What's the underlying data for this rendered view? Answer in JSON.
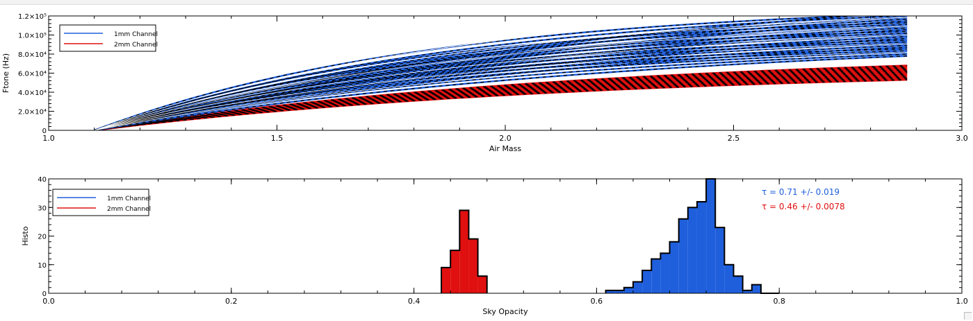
{
  "chart_data": [
    {
      "type": "line",
      "title": "",
      "xlabel": "Air Mass",
      "ylabel": "Ftone (Hz)",
      "xlim": [
        1.0,
        3.0
      ],
      "ylim": [
        0,
        120000
      ],
      "x_ticks": [
        "1.0",
        "1.5",
        "2.0",
        "2.5",
        "3.0"
      ],
      "x_tick_values": [
        1.0,
        1.5,
        2.0,
        2.5,
        3.0
      ],
      "y_ticks": [
        "0",
        "2.0×10⁴",
        "4.0×10⁴",
        "6.0×10⁴",
        "8.0×10⁴",
        "1.0×10⁵",
        "1.2×10⁵"
      ],
      "y_tick_values": [
        0,
        20000,
        40000,
        60000,
        80000,
        100000,
        120000
      ],
      "legend": {
        "position": "top-left",
        "entries": [
          {
            "label": "1mm Channel",
            "color": "#1f5fdc"
          },
          {
            "label": "2mm Channel",
            "color": "#e01010"
          }
        ]
      },
      "x_start": 1.1,
      "x_end": 2.88,
      "series": [
        {
          "name": "1mm Channel",
          "color": "#1f5fdc",
          "end_values_min": 78000,
          "end_values_max": 124000
        },
        {
          "name": "2mm Channel",
          "color": "#e01010",
          "end_values_min": 53000,
          "end_values_max": 68000
        }
      ]
    },
    {
      "type": "histogram",
      "title": "",
      "xlabel": "Sky Opacity",
      "ylabel": "Histo",
      "xlim": [
        0.0,
        1.0
      ],
      "ylim": [
        0,
        40
      ],
      "x_ticks": [
        "0.0",
        "0.2",
        "0.4",
        "0.6",
        "0.8",
        "1.0"
      ],
      "x_tick_values": [
        0.0,
        0.2,
        0.4,
        0.6,
        0.8,
        1.0
      ],
      "y_ticks": [
        "0",
        "10",
        "20",
        "30",
        "40"
      ],
      "y_tick_values": [
        0,
        10,
        20,
        30,
        40
      ],
      "legend": {
        "position": "top-left",
        "entries": [
          {
            "label": "1mm Channel",
            "color": "#1f5fdc"
          },
          {
            "label": "2mm Channel",
            "color": "#e01010"
          }
        ]
      },
      "annotations": [
        {
          "text": "τ = 0.71 +/- 0.019",
          "color": "#1f5fdc"
        },
        {
          "text": "τ = 0.46 +/- 0.0078",
          "color": "#e01010"
        }
      ],
      "series": [
        {
          "name": "2mm Channel",
          "color": "#e01010",
          "bin_width": 0.01,
          "bin_starts": [
            0.43,
            0.44,
            0.45,
            0.46,
            0.47
          ],
          "values": [
            9,
            15,
            29,
            19,
            6
          ]
        },
        {
          "name": "1mm Channel",
          "color": "#1f5fdc",
          "bin_width": 0.01,
          "bin_starts": [
            0.61,
            0.62,
            0.63,
            0.64,
            0.65,
            0.66,
            0.67,
            0.68,
            0.69,
            0.7,
            0.71,
            0.72,
            0.73,
            0.74,
            0.75,
            0.76,
            0.77,
            0.78,
            0.79
          ],
          "values": [
            1,
            1,
            2,
            4,
            8,
            12,
            14,
            18,
            26,
            30,
            32,
            41,
            23,
            10,
            6,
            1,
            3,
            0,
            0
          ]
        }
      ]
    }
  ]
}
